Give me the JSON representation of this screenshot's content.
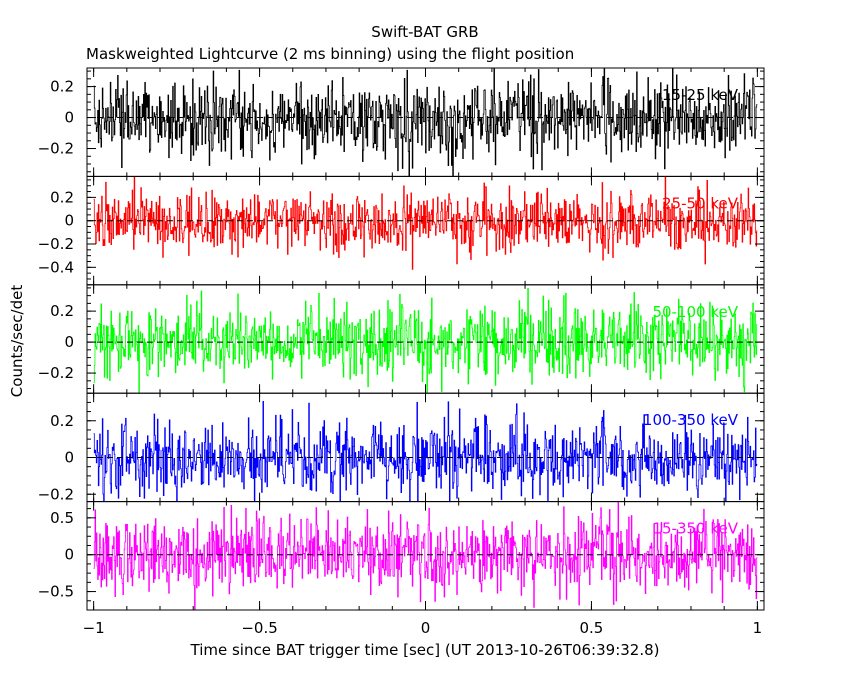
{
  "chart_data": {
    "type": "line",
    "title": "Swift-BAT GRB",
    "subtitle": "Maskweighted Lightcurve (2 ms binning) using the flight position",
    "xlabel": "Time since BAT trigger time [sec] (UT 2013-10-26T06:39:32.8)",
    "ylabel": "Counts/sec/det",
    "xlim": [
      -1.02,
      1.02
    ],
    "x_ticks": [
      -1,
      -0.5,
      0,
      0.5,
      1
    ],
    "x_tick_labels": [
      "−1",
      "−0.5",
      "0",
      "0.5",
      "1"
    ],
    "bin_size_sec": 0.002,
    "grid": false,
    "panels": [
      {
        "name": "15-25 keV",
        "color": "#000000",
        "ylim": [
          -0.38,
          0.32
        ],
        "y_ticks": [
          -0.2,
          0,
          0.2
        ],
        "y_tick_labels": [
          "−0.2",
          "0",
          "0.2"
        ],
        "noise_sigma": 0.13
      },
      {
        "name": "25-50 keV",
        "color": "#ff0000",
        "ylim": [
          -0.55,
          0.38
        ],
        "y_ticks": [
          -0.4,
          -0.2,
          0,
          0.2
        ],
        "y_tick_labels": [
          "−0.4",
          "−0.2",
          "0",
          "0.2"
        ],
        "noise_sigma": 0.13
      },
      {
        "name": "50-100 keV",
        "color": "#00ff00",
        "ylim": [
          -0.33,
          0.37
        ],
        "y_ticks": [
          -0.2,
          0,
          0.2
        ],
        "y_tick_labels": [
          "−0.2",
          "0",
          "0.2"
        ],
        "noise_sigma": 0.12
      },
      {
        "name": "100-350 keV",
        "color": "#0000ff",
        "ylim": [
          -0.24,
          0.35
        ],
        "y_ticks": [
          -0.2,
          0,
          0.2
        ],
        "y_tick_labels": [
          "−0.2",
          "0",
          "0.2"
        ],
        "noise_sigma": 0.1
      },
      {
        "name": "15-350 keV",
        "color": "#ff00ff",
        "ylim": [
          -0.75,
          0.72
        ],
        "y_ticks": [
          -0.5,
          0,
          0.5
        ],
        "y_tick_labels": [
          "−0.5",
          "0",
          "0.5"
        ],
        "noise_sigma": 0.25
      }
    ]
  }
}
